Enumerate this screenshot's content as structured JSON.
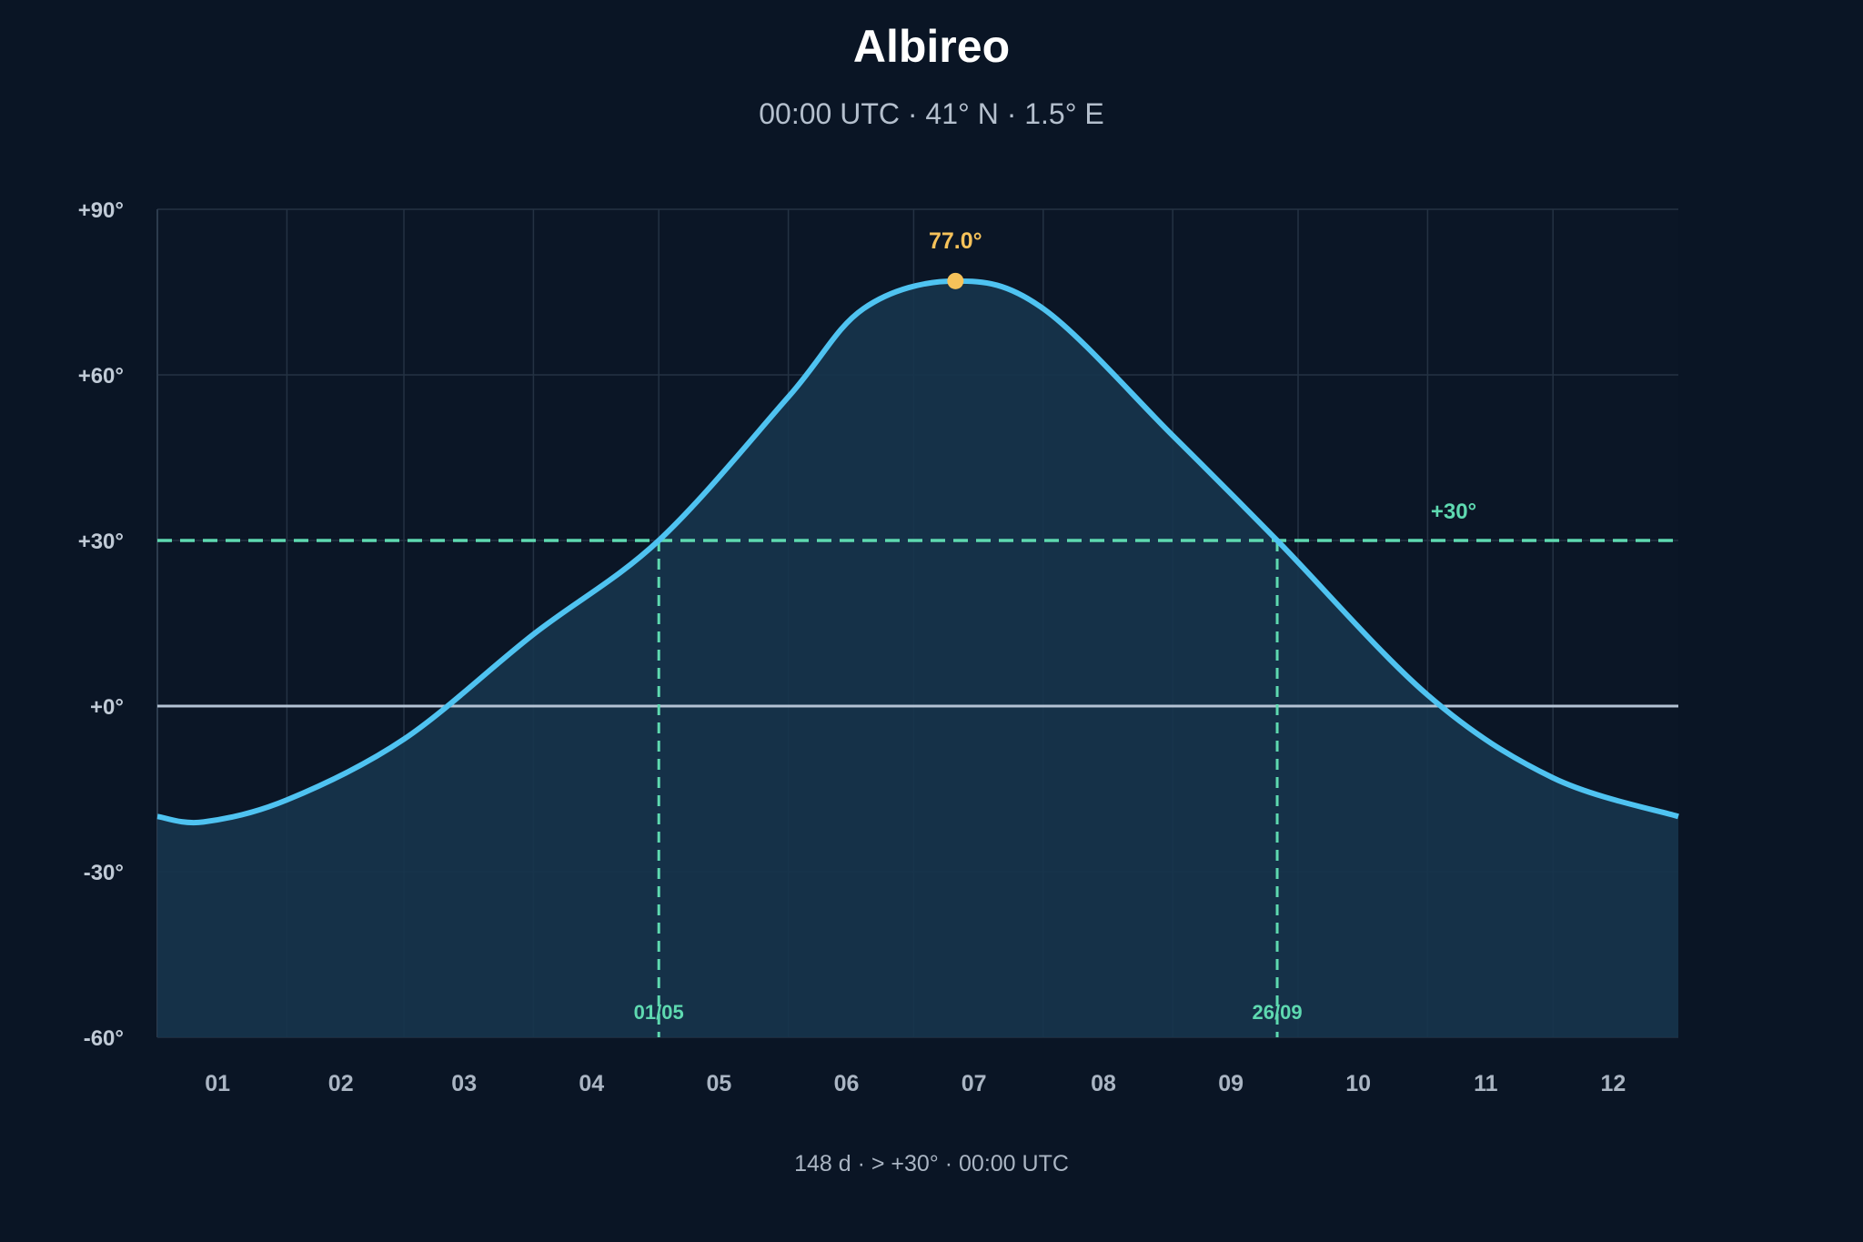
{
  "chart_data": {
    "type": "line",
    "title": "Albireo",
    "subtitle": "00:00 UTC · 41° N · 1.5° E",
    "x_tick_labels": [
      "01",
      "02",
      "03",
      "04",
      "05",
      "06",
      "07",
      "08",
      "09",
      "10",
      "11",
      "12"
    ],
    "x_range_day_of_year": [
      1,
      365
    ],
    "y_ticks": [
      90,
      60,
      30,
      0,
      -30,
      -60
    ],
    "y_tick_labels": [
      "+90°",
      "+60°",
      "+30°",
      "+0°",
      "-30°",
      "-60°"
    ],
    "ylim": [
      -60,
      90
    ],
    "grid": true,
    "legend": "none",
    "series": [
      {
        "x_day_of_year": [
          1,
          12,
          32,
          60,
          91,
          121,
          152,
          170,
          192,
          213,
          244,
          269,
          305,
          335,
          365
        ],
        "values": [
          -20,
          -21,
          -17,
          -6,
          13,
          30,
          56,
          72,
          77,
          72,
          49,
          30,
          2,
          -13,
          -20
        ]
      }
    ],
    "peak": {
      "day_of_year": 192,
      "value": 77.0,
      "label": "77.0°"
    },
    "threshold": {
      "value": 30,
      "label": "+30°"
    },
    "crossings": [
      {
        "day_of_year": 121,
        "label": "01/05"
      },
      {
        "day_of_year": 269,
        "label": "26/09"
      }
    ],
    "footer": "148 d · > +30° · 00:00 UTC",
    "colors": {
      "background": "#0a1525",
      "plot_background": "#0b1626",
      "grid": "#243243",
      "curve": "#4fc3f1",
      "fill": "#16344d",
      "horizon": "#b4c3d4",
      "threshold": "#5ed9b0",
      "peak": "#f6c25a"
    }
  }
}
